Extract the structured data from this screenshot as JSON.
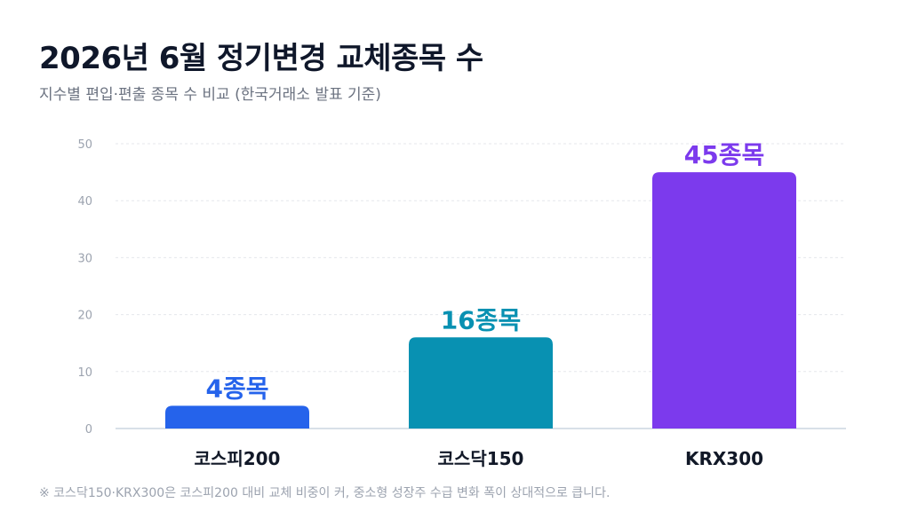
{
  "header": {
    "title": "2026년 6월 정기변경 교체종목 수",
    "subtitle": "지수별 편입·편출 종목 수 비교 (한국거래소 발표 기준)"
  },
  "footnote": "※ 코스닥150·KRX300은 코스피200 대비 교체 비중이 커, 중소형 성장주 수급 변화 폭이 상대적으로 큽니다.",
  "colors": {
    "grid": "#e5e7eb",
    "axis": "#cbd5e1",
    "tick": "#9ca3af",
    "category_label": "#111827"
  },
  "chart_data": {
    "type": "bar",
    "categories": [
      "코스피200",
      "코스닥150",
      "KRX300"
    ],
    "values": [
      4,
      16,
      45
    ],
    "data_labels": [
      "4종목",
      "16종목",
      "45종목"
    ],
    "bar_colors": [
      "#2563eb",
      "#0891b2",
      "#7c3aed"
    ],
    "ylim": [
      0,
      50
    ],
    "yticks": [
      0,
      10,
      20,
      30,
      40,
      50
    ],
    "grid": true,
    "title": "2026년 6월 정기변경 교체종목 수",
    "xlabel": "",
    "ylabel": ""
  }
}
